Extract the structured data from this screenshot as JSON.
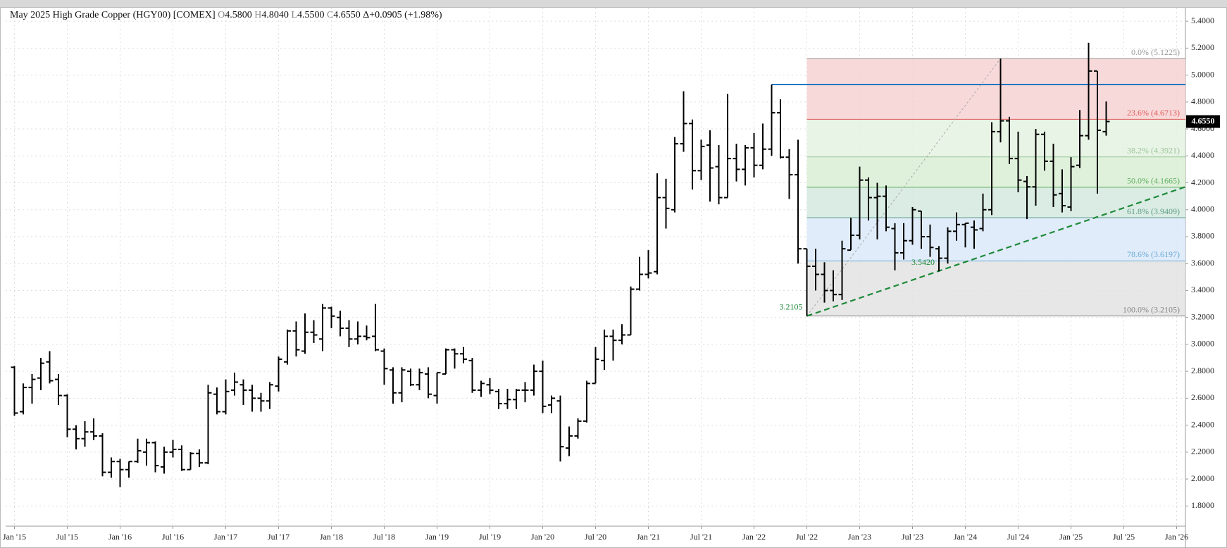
{
  "chart_data": {
    "type": "ohlc",
    "title": "May 2025 High Grade Copper (HGY00) [COMEX]",
    "quote": [
      {
        "key": "O",
        "value": 4.58,
        "label": "4.5800"
      },
      {
        "key": "H",
        "value": 4.804,
        "label": "4.8040"
      },
      {
        "key": "L",
        "value": 4.55,
        "label": "4.5500"
      },
      {
        "key": "C",
        "value": 4.655,
        "label": "4.6550"
      }
    ],
    "change": "Δ+0.0905 (+1.98%)",
    "x": [
      "2015-01",
      "2015-02",
      "2015-03",
      "2015-04",
      "2015-05",
      "2015-06",
      "2015-07",
      "2015-08",
      "2015-09",
      "2015-10",
      "2015-11",
      "2015-12",
      "2016-01",
      "2016-02",
      "2016-03",
      "2016-04",
      "2016-05",
      "2016-06",
      "2016-07",
      "2016-08",
      "2016-09",
      "2016-10",
      "2016-11",
      "2016-12",
      "2017-01",
      "2017-02",
      "2017-03",
      "2017-04",
      "2017-05",
      "2017-06",
      "2017-07",
      "2017-08",
      "2017-09",
      "2017-10",
      "2017-11",
      "2017-12",
      "2018-01",
      "2018-02",
      "2018-03",
      "2018-04",
      "2018-05",
      "2018-06",
      "2018-07",
      "2018-08",
      "2018-09",
      "2018-10",
      "2018-11",
      "2018-12",
      "2019-01",
      "2019-02",
      "2019-03",
      "2019-04",
      "2019-05",
      "2019-06",
      "2019-07",
      "2019-08",
      "2019-09",
      "2019-10",
      "2019-11",
      "2019-12",
      "2020-01",
      "2020-02",
      "2020-03",
      "2020-04",
      "2020-05",
      "2020-06",
      "2020-07",
      "2020-08",
      "2020-09",
      "2020-10",
      "2020-11",
      "2020-12",
      "2021-01",
      "2021-02",
      "2021-03",
      "2021-04",
      "2021-05",
      "2021-06",
      "2021-07",
      "2021-08",
      "2021-09",
      "2021-10",
      "2021-11",
      "2021-12",
      "2022-01",
      "2022-02",
      "2022-03",
      "2022-04",
      "2022-05",
      "2022-06",
      "2022-07",
      "2022-08",
      "2022-09",
      "2022-10",
      "2022-11",
      "2022-12",
      "2023-01",
      "2023-02",
      "2023-03",
      "2023-04",
      "2023-05",
      "2023-06",
      "2023-07",
      "2023-08",
      "2023-09",
      "2023-10",
      "2023-11",
      "2023-12",
      "2024-01",
      "2024-02",
      "2024-03",
      "2024-04",
      "2024-05",
      "2024-06",
      "2024-07",
      "2024-08",
      "2024-09",
      "2024-10",
      "2024-11",
      "2024-12",
      "2025-01",
      "2025-02",
      "2025-03",
      "2025-04",
      "2025-05"
    ],
    "open": [
      2.83,
      2.5,
      2.68,
      2.75,
      2.87,
      2.74,
      2.62,
      2.37,
      2.3,
      2.35,
      2.32,
      2.05,
      2.13,
      2.07,
      2.13,
      2.2,
      2.27,
      2.09,
      2.2,
      2.22,
      2.07,
      2.19,
      2.12,
      2.63,
      2.5,
      2.66,
      2.7,
      2.66,
      2.6,
      2.58,
      2.69,
      2.87,
      3.1,
      2.95,
      3.09,
      3.04,
      3.27,
      3.2,
      3.12,
      3.04,
      3.06,
      3.06,
      2.95,
      2.81,
      2.64,
      2.8,
      2.7,
      2.78,
      2.62,
      2.78,
      2.96,
      2.93,
      2.88,
      2.66,
      2.7,
      2.65,
      2.56,
      2.59,
      2.66,
      2.66,
      2.8,
      2.55,
      2.58,
      2.23,
      2.32,
      2.43,
      2.71,
      2.88,
      3.06,
      3.03,
      3.07,
      3.41,
      3.52,
      3.54,
      4.09,
      4.0,
      4.49,
      4.64,
      4.29,
      4.48,
      4.32,
      4.09,
      4.38,
      4.3,
      4.46,
      4.33,
      4.45,
      4.72,
      4.39,
      4.26,
      3.71,
      3.58,
      3.52,
      3.4,
      3.37,
      3.7,
      3.81,
      4.22,
      4.09,
      4.1,
      3.86,
      3.68,
      3.77,
      3.99,
      3.8,
      3.71,
      3.64,
      3.84,
      3.89,
      3.87,
      3.86,
      4.0,
      4.58,
      4.66,
      4.38,
      4.21,
      4.17,
      4.56,
      4.36,
      4.12,
      4.02,
      4.33,
      4.55,
      5.03,
      4.58
    ],
    "high": [
      2.84,
      2.71,
      2.78,
      2.9,
      2.95,
      2.78,
      2.63,
      2.4,
      2.43,
      2.45,
      2.34,
      2.16,
      2.15,
      2.13,
      2.3,
      2.3,
      2.28,
      2.24,
      2.29,
      2.25,
      2.2,
      2.22,
      2.7,
      2.68,
      2.74,
      2.79,
      2.74,
      2.7,
      2.64,
      2.72,
      2.91,
      3.11,
      3.17,
      3.23,
      3.18,
      3.3,
      3.28,
      3.25,
      3.18,
      3.17,
      3.14,
      3.3,
      2.97,
      2.83,
      2.83,
      2.82,
      2.82,
      2.83,
      2.79,
      2.97,
      2.97,
      2.98,
      2.9,
      2.73,
      2.75,
      2.67,
      2.67,
      2.67,
      2.72,
      2.85,
      2.88,
      2.62,
      2.62,
      2.39,
      2.45,
      2.73,
      2.98,
      3.11,
      3.11,
      3.15,
      3.43,
      3.65,
      3.7,
      4.27,
      4.23,
      4.54,
      4.88,
      4.67,
      4.52,
      4.59,
      4.48,
      4.86,
      4.49,
      4.48,
      4.57,
      4.64,
      4.93,
      4.82,
      4.45,
      4.52,
      3.71,
      3.71,
      3.61,
      3.55,
      3.77,
      3.94,
      4.32,
      4.24,
      4.2,
      4.18,
      3.9,
      3.9,
      4.02,
      3.99,
      3.89,
      3.73,
      3.87,
      3.98,
      3.9,
      3.92,
      4.12,
      4.65,
      5.1225,
      4.69,
      4.58,
      4.25,
      4.6,
      4.58,
      4.49,
      4.3,
      4.39,
      4.74,
      5.24,
      5.03,
      4.804
    ],
    "low": [
      2.47,
      2.48,
      2.56,
      2.66,
      2.71,
      2.55,
      2.31,
      2.22,
      2.24,
      2.29,
      2.02,
      2.01,
      1.94,
      2.01,
      2.12,
      2.1,
      2.05,
      2.04,
      2.16,
      2.06,
      2.07,
      2.09,
      2.11,
      2.48,
      2.48,
      2.62,
      2.55,
      2.5,
      2.5,
      2.52,
      2.65,
      2.85,
      2.91,
      2.93,
      3.01,
      2.95,
      3.12,
      3.06,
      2.98,
      3.0,
      3.03,
      2.95,
      2.7,
      2.56,
      2.57,
      2.69,
      2.66,
      2.6,
      2.56,
      2.78,
      2.82,
      2.86,
      2.64,
      2.61,
      2.63,
      2.52,
      2.52,
      2.52,
      2.57,
      2.62,
      2.49,
      2.49,
      2.13,
      2.17,
      2.3,
      2.42,
      2.71,
      2.81,
      2.88,
      3.0,
      3.07,
      3.4,
      3.49,
      3.52,
      3.86,
      3.98,
      4.43,
      4.15,
      4.22,
      4.06,
      4.04,
      4.09,
      4.21,
      4.18,
      4.24,
      4.3,
      4.4,
      4.38,
      4.08,
      3.6,
      3.2105,
      3.4,
      3.31,
      3.32,
      3.33,
      3.7,
      3.78,
      3.92,
      3.78,
      3.84,
      3.55,
      3.63,
      3.74,
      3.71,
      3.65,
      3.542,
      3.6,
      3.77,
      3.72,
      3.71,
      3.84,
      3.96,
      4.5,
      4.34,
      4.13,
      3.93,
      4.03,
      4.29,
      4.02,
      3.98,
      3.99,
      4.31,
      4.52,
      4.12,
      4.55
    ],
    "close": [
      2.49,
      2.68,
      2.74,
      2.86,
      2.73,
      2.62,
      2.37,
      2.3,
      2.35,
      2.32,
      2.05,
      2.13,
      2.07,
      2.13,
      2.21,
      2.27,
      2.1,
      2.2,
      2.22,
      2.07,
      2.19,
      2.12,
      2.64,
      2.5,
      2.65,
      2.72,
      2.66,
      2.6,
      2.58,
      2.7,
      2.89,
      3.1,
      2.96,
      3.09,
      3.07,
      3.27,
      3.21,
      3.12,
      3.04,
      3.06,
      3.05,
      2.96,
      2.82,
      2.64,
      2.81,
      2.7,
      2.79,
      2.63,
      2.79,
      2.96,
      2.93,
      2.89,
      2.66,
      2.71,
      2.66,
      2.56,
      2.59,
      2.66,
      2.66,
      2.8,
      2.54,
      2.6,
      2.24,
      2.32,
      2.43,
      2.71,
      2.89,
      3.06,
      3.03,
      3.07,
      3.41,
      3.52,
      3.53,
      4.09,
      4.01,
      4.49,
      4.64,
      4.29,
      4.47,
      4.31,
      4.09,
      4.38,
      4.3,
      4.46,
      4.33,
      4.45,
      4.72,
      4.39,
      4.26,
      3.71,
      3.58,
      3.52,
      3.4,
      3.37,
      3.71,
      3.81,
      4.22,
      4.09,
      4.1,
      3.87,
      3.68,
      3.77,
      4.0,
      3.8,
      3.72,
      3.64,
      3.84,
      3.89,
      3.9,
      3.85,
      4.0,
      4.58,
      4.66,
      4.38,
      4.22,
      4.17,
      4.56,
      4.36,
      4.11,
      4.03,
      4.32,
      4.55,
      5.03,
      4.59,
      4.655
    ],
    "color": "#000000",
    "xlim": [
      "2014-12",
      "2026-02"
    ],
    "xticks": [
      {
        "value": "2015-01",
        "label": "Jan '15"
      },
      {
        "value": "2015-07",
        "label": "Jul '15"
      },
      {
        "value": "2016-01",
        "label": "Jan '16"
      },
      {
        "value": "2016-07",
        "label": "Jul '16"
      },
      {
        "value": "2017-01",
        "label": "Jan '17"
      },
      {
        "value": "2017-07",
        "label": "Jul '17"
      },
      {
        "value": "2018-01",
        "label": "Jan '18"
      },
      {
        "value": "2018-07",
        "label": "Jul '18"
      },
      {
        "value": "2019-01",
        "label": "Jan '19"
      },
      {
        "value": "2019-07",
        "label": "Jul '19"
      },
      {
        "value": "2020-01",
        "label": "Jan '20"
      },
      {
        "value": "2020-07",
        "label": "Jul '20"
      },
      {
        "value": "2021-01",
        "label": "Jan '21"
      },
      {
        "value": "2021-07",
        "label": "Jul '21"
      },
      {
        "value": "2022-01",
        "label": "Jan '22"
      },
      {
        "value": "2022-07",
        "label": "Jul '22"
      },
      {
        "value": "2023-01",
        "label": "Jan '23"
      },
      {
        "value": "2023-07",
        "label": "Jul '23"
      },
      {
        "value": "2024-01",
        "label": "Jan '24"
      },
      {
        "value": "2024-07",
        "label": "Jul '24"
      },
      {
        "value": "2025-01",
        "label": "Jan '25"
      },
      {
        "value": "2025-07",
        "label": "Jul '25"
      },
      {
        "value": "2026-01",
        "label": "Jan '26"
      }
    ],
    "ylim": [
      1.65,
      5.5
    ],
    "yticks": [
      {
        "value": 1.8,
        "label": "1.8000"
      },
      {
        "value": 2.0,
        "label": "2.0000"
      },
      {
        "value": 2.2,
        "label": "2.2000"
      },
      {
        "value": 2.4,
        "label": "2.4000"
      },
      {
        "value": 2.6,
        "label": "2.6000"
      },
      {
        "value": 2.8,
        "label": "2.8000"
      },
      {
        "value": 3.0,
        "label": "3.0000"
      },
      {
        "value": 3.2,
        "label": "3.2000"
      },
      {
        "value": 3.4,
        "label": "3.4000"
      },
      {
        "value": 3.6,
        "label": "3.6000"
      },
      {
        "value": 3.8,
        "label": "3.8000"
      },
      {
        "value": 4.0,
        "label": "4.0000"
      },
      {
        "value": 4.2,
        "label": "4.2000"
      },
      {
        "value": 4.4,
        "label": "4.4000"
      },
      {
        "value": 4.6,
        "label": "4.6000"
      },
      {
        "value": 4.8,
        "label": "4.8000"
      },
      {
        "value": 5.0,
        "label": "5.0000"
      },
      {
        "value": 5.2,
        "label": "5.2000"
      },
      {
        "value": 5.4,
        "label": "5.4000"
      }
    ],
    "grid": true,
    "fibonacci": {
      "start": "2022-07",
      "levels": [
        {
          "value": 5.1225,
          "label": "0.0% (5.1225)",
          "color": "#999999"
        },
        {
          "value": 4.6713,
          "label": "23.6% (4.6713)",
          "color": "#e05a5a"
        },
        {
          "value": 4.3921,
          "label": "38.2% (4.3921)",
          "color": "#9cc79c"
        },
        {
          "value": 4.1665,
          "label": "50.0% (4.1665)",
          "color": "#5fae5f"
        },
        {
          "value": 3.9409,
          "label": "61.8% (3.9409)",
          "color": "#5f9e8a"
        },
        {
          "value": 3.6197,
          "label": "78.6% (3.6197)",
          "color": "#6aaad8"
        },
        {
          "value": 3.2105,
          "label": "100.0% (3.2105)",
          "color": "#888888"
        }
      ],
      "zone_colors": [
        "#f7d2d2",
        "#e4f2e0",
        "#d9eed3",
        "#d3e9df",
        "#dbe9f8",
        "#e3e3e3"
      ]
    },
    "resistance": {
      "start": "2022-03",
      "value": 4.93,
      "color": "#1f77c4"
    },
    "trendline": {
      "start": [
        "2022-07",
        3.2105
      ],
      "end": [
        "2026-02",
        4.17
      ],
      "color": "#1e8a3a"
    },
    "fib_guide": {
      "start": [
        "2022-07",
        3.2105
      ],
      "end": [
        "2024-05",
        5.1225
      ],
      "color": "#aaaaaa"
    },
    "annotations": [
      {
        "x": "2022-07",
        "value": 3.2105,
        "label": "3.2105",
        "color": "#1e8a3a"
      },
      {
        "x": "2023-10",
        "value": 3.542,
        "label": "3.5420",
        "color": "#1e8a3a"
      }
    ],
    "last_price": {
      "value": 4.655,
      "label": "4.6550"
    }
  }
}
